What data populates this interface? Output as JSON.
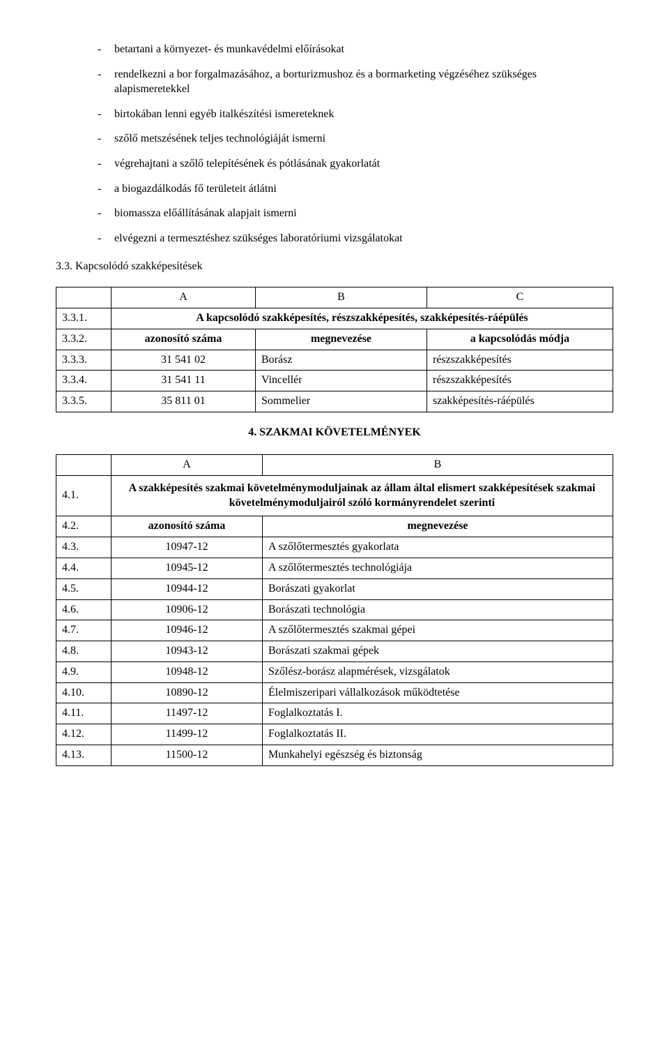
{
  "bullets": [
    "betartani a környezet- és munkavédelmi előírásokat",
    "rendelkezni a bor forgalmazásához, a borturizmushoz és a bormarketing végzéséhez szükséges alapismeretekkel",
    "birtokában lenni egyéb italkészítési ismereteknek",
    "szőlő metszésének teljes technológiáját ismerni",
    "végrehajtani a szőlő telepítésének és pótlásának gyakorlatát",
    "a biogazdálkodás fő területeit átlátni",
    "biomassza előállításának alapjait ismerni",
    "elvégezni a termesztéshez szükséges laboratóriumi vizsgálatokat"
  ],
  "s33_heading": "3.3. Kapcsolódó szakképesítések",
  "table1": {
    "head": {
      "a": "A",
      "b": "B",
      "c": "C"
    },
    "r331": {
      "num": "3.3.1.",
      "text": "A kapcsolódó szakképesítés, részszakképesítés, szakképesítés-ráépülés"
    },
    "r332": {
      "num": "3.3.2.",
      "a": "azonosító száma",
      "b": "megnevezése",
      "c": "a kapcsolódás módja"
    },
    "rows": [
      {
        "num": "3.3.3.",
        "a": "31 541 02",
        "b": "Borász",
        "c": "részszakképesítés"
      },
      {
        "num": "3.3.4.",
        "a": "31 541 11",
        "b": "Vincellér",
        "c": "részszakképesítés"
      },
      {
        "num": "3.3.5.",
        "a": "35 811 01",
        "b": "Sommelier",
        "c": "szakképesítés-ráépülés"
      }
    ]
  },
  "section4_title": "4. SZAKMAI KÖVETELMÉNYEK",
  "table2": {
    "head": {
      "a": "A",
      "b": "B"
    },
    "r41": {
      "num": "4.1.",
      "text": "A szakképesítés szakmai követelménymoduljainak az állam által elismert szakképesítések szakmai követelménymoduljairól szóló kormányrendelet szerinti"
    },
    "r42": {
      "num": "4.2.",
      "a": "azonosító száma",
      "b": "megnevezése"
    },
    "rows": [
      {
        "num": "4.3.",
        "a": "10947-12",
        "b": "A szőlőtermesztés gyakorlata"
      },
      {
        "num": "4.4.",
        "a": "10945-12",
        "b": "A szőlőtermesztés technológiája"
      },
      {
        "num": "4.5.",
        "a": "10944-12",
        "b": "Borászati gyakorlat"
      },
      {
        "num": "4.6.",
        "a": "10906-12",
        "b": "Borászati technológia"
      },
      {
        "num": "4.7.",
        "a": "10946-12",
        "b": "A szőlőtermesztés szakmai gépei"
      },
      {
        "num": "4.8.",
        "a": "10943-12",
        "b": "Borászati szakmai gépek"
      },
      {
        "num": "4.9.",
        "a": "10948-12",
        "b": "Szőlész-borász alapmérések, vizsgálatok"
      },
      {
        "num": "4.10.",
        "a": "10890-12",
        "b": "Élelmiszeripari vállalkozások működtetése"
      },
      {
        "num": "4.11.",
        "a": "11497-12",
        "b": "Foglalkoztatás I."
      },
      {
        "num": "4.12.",
        "a": "11499-12",
        "b": "Foglalkoztatás II."
      },
      {
        "num": "4.13.",
        "a": "11500-12",
        "b": "Munkahelyi egészség és biztonság"
      }
    ]
  }
}
